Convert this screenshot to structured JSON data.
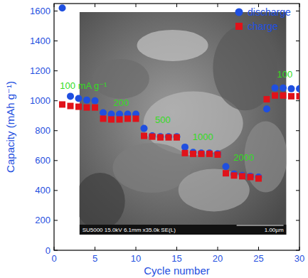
{
  "chart_data": {
    "type": "scatter",
    "x_label": "Cycle number",
    "y_label": "Capacity (mAh g⁻¹)",
    "x": [
      1,
      2,
      3,
      4,
      5,
      6,
      7,
      8,
      9,
      10,
      11,
      12,
      13,
      14,
      15,
      16,
      17,
      18,
      19,
      20,
      21,
      22,
      23,
      24,
      25,
      26,
      27,
      28,
      29,
      30
    ],
    "series": [
      {
        "name": "discharge",
        "color": "#1f4fe0",
        "marker": "circle",
        "values": [
          1620,
          1030,
          1015,
          1005,
          1000,
          920,
          910,
          910,
          910,
          910,
          815,
          765,
          760,
          760,
          760,
          690,
          655,
          650,
          650,
          645,
          560,
          510,
          500,
          495,
          490,
          945,
          1085,
          1085,
          1080,
          1080
        ]
      },
      {
        "name": "charge",
        "color": "#e0121a",
        "marker": "square",
        "values": [
          975,
          965,
          960,
          955,
          955,
          880,
          875,
          875,
          880,
          880,
          765,
          760,
          755,
          755,
          755,
          650,
          645,
          645,
          645,
          640,
          515,
          500,
          495,
          490,
          480,
          1010,
          1035,
          1035,
          1030,
          1030
        ]
      }
    ],
    "xlim": [
      0,
      30
    ],
    "xticks": [
      0,
      5,
      10,
      15,
      20,
      25,
      30
    ],
    "ylim": [
      0,
      1650
    ],
    "yticks": [
      0,
      200,
      400,
      600,
      800,
      1000,
      1200,
      1400,
      1600
    ],
    "legend": "top-right",
    "annotations": [
      {
        "text": "100 mA g⁻¹",
        "x": 3.6,
        "y": 1080
      },
      {
        "text": "200",
        "x": 8.2,
        "y": 965
      },
      {
        "text": "500",
        "x": 13.3,
        "y": 850
      },
      {
        "text": "1000",
        "x": 18.2,
        "y": 735
      },
      {
        "text": "2000",
        "x": 23.2,
        "y": 600
      },
      {
        "text": "100",
        "x": 28.2,
        "y": 1155
      }
    ],
    "inset_texts": [
      "SU5000 15.0kV 6.1mm x35.0k SE(L)",
      "1.00µm"
    ]
  }
}
